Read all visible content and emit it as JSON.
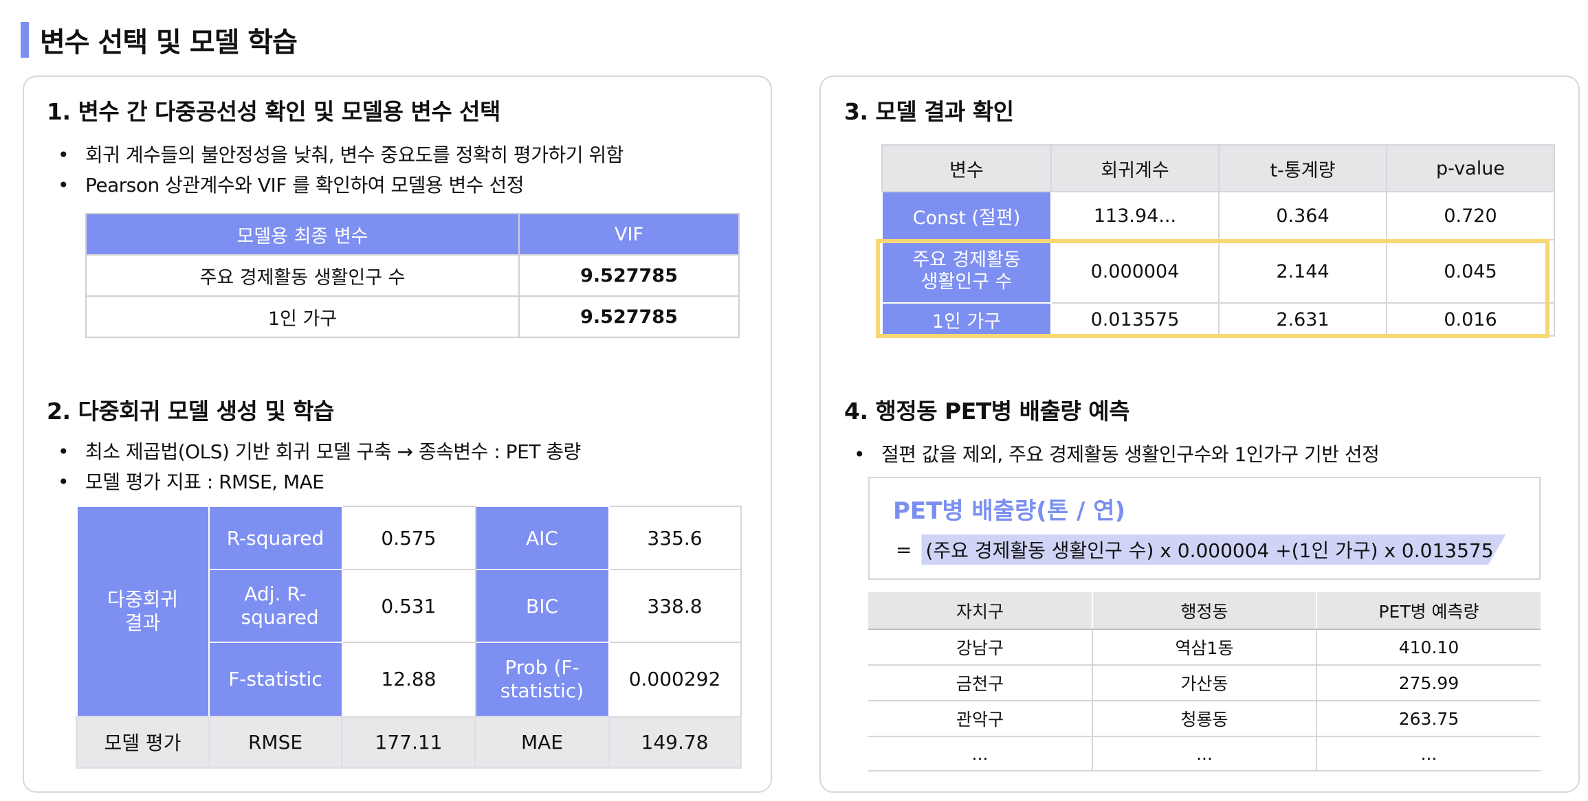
{
  "page": {
    "title": "변수 선택 및 모델 학습",
    "accent": "#7b8ff0",
    "highlight": "#f7d774"
  },
  "s1": {
    "title": "1. 변수 간 다중공선성 확인 및 모델용 변수 선택",
    "bullets": [
      "회귀 계수들의 불안정성을 낮춰, 변수 중요도를 정확히 평가하기 위함",
      "Pearson 상관계수와 VIF 를 확인하여 모델용 변수 선정"
    ],
    "table": {
      "headers": [
        "모델용 최종 변수",
        "VIF"
      ],
      "rows": [
        [
          "주요 경제활동 생활인구 수",
          "9.527785"
        ],
        [
          "1인 가구",
          "9.527785"
        ]
      ]
    }
  },
  "s2": {
    "title": "2. 다중회귀 모델 생성 및 학습",
    "bullets": [
      "최소 제곱법(OLS) 기반 회귀 모델 구축 → 종속변수 : PET 총량",
      "모델 평가 지표 : RMSE, MAE"
    ],
    "table": {
      "group_label": "다중회귀 결과",
      "r_squared_label": "R-squared",
      "r_squared": "0.575",
      "aic_label": "AIC",
      "aic": "335.6",
      "adj_label": "Adj. R-squared",
      "adj": "0.531",
      "bic_label": "BIC",
      "bic": "338.8",
      "f_label": "F-statistic",
      "f": "12.88",
      "prob_label": "Prob (F-statistic)",
      "prob": "0.000292",
      "eval_label": "모델 평가",
      "rmse_label": "RMSE",
      "rmse": "177.11",
      "mae_label": "MAE",
      "mae": "149.78"
    }
  },
  "s3": {
    "title": "3. 모델 결과 확인",
    "table": {
      "headers": [
        "변수",
        "회귀계수",
        "t-통계량",
        "p-value"
      ],
      "rows": [
        [
          "Const (절편)",
          "113.94...",
          "0.364",
          "0.720"
        ],
        [
          "주요 경제활동 생활인구 수",
          "0.000004",
          "2.144",
          "0.045"
        ],
        [
          "1인 가구",
          "0.013575",
          "2.631",
          "0.016"
        ]
      ]
    }
  },
  "s4": {
    "title": "4. 행정동 PET병 배출량 예측",
    "bullets": [
      "절편 값을 제외, 주요 경제활동 생활인구수와 1인가구 기반 선정"
    ],
    "formula": {
      "title": "PET병 배출량(톤 / 연)",
      "eq_sign": "=",
      "expression": "(주요 경제활동 생활인구 수) x 0.000004  +(1인 가구) x 0.013575"
    },
    "table": {
      "headers": [
        "자치구",
        "행정동",
        "PET병 예측량"
      ],
      "rows": [
        [
          "강남구",
          "역삼1동",
          "410.10"
        ],
        [
          "금천구",
          "가산동",
          "275.99"
        ],
        [
          "관악구",
          "청룡동",
          "263.75"
        ],
        [
          "...",
          "...",
          "..."
        ]
      ]
    }
  }
}
